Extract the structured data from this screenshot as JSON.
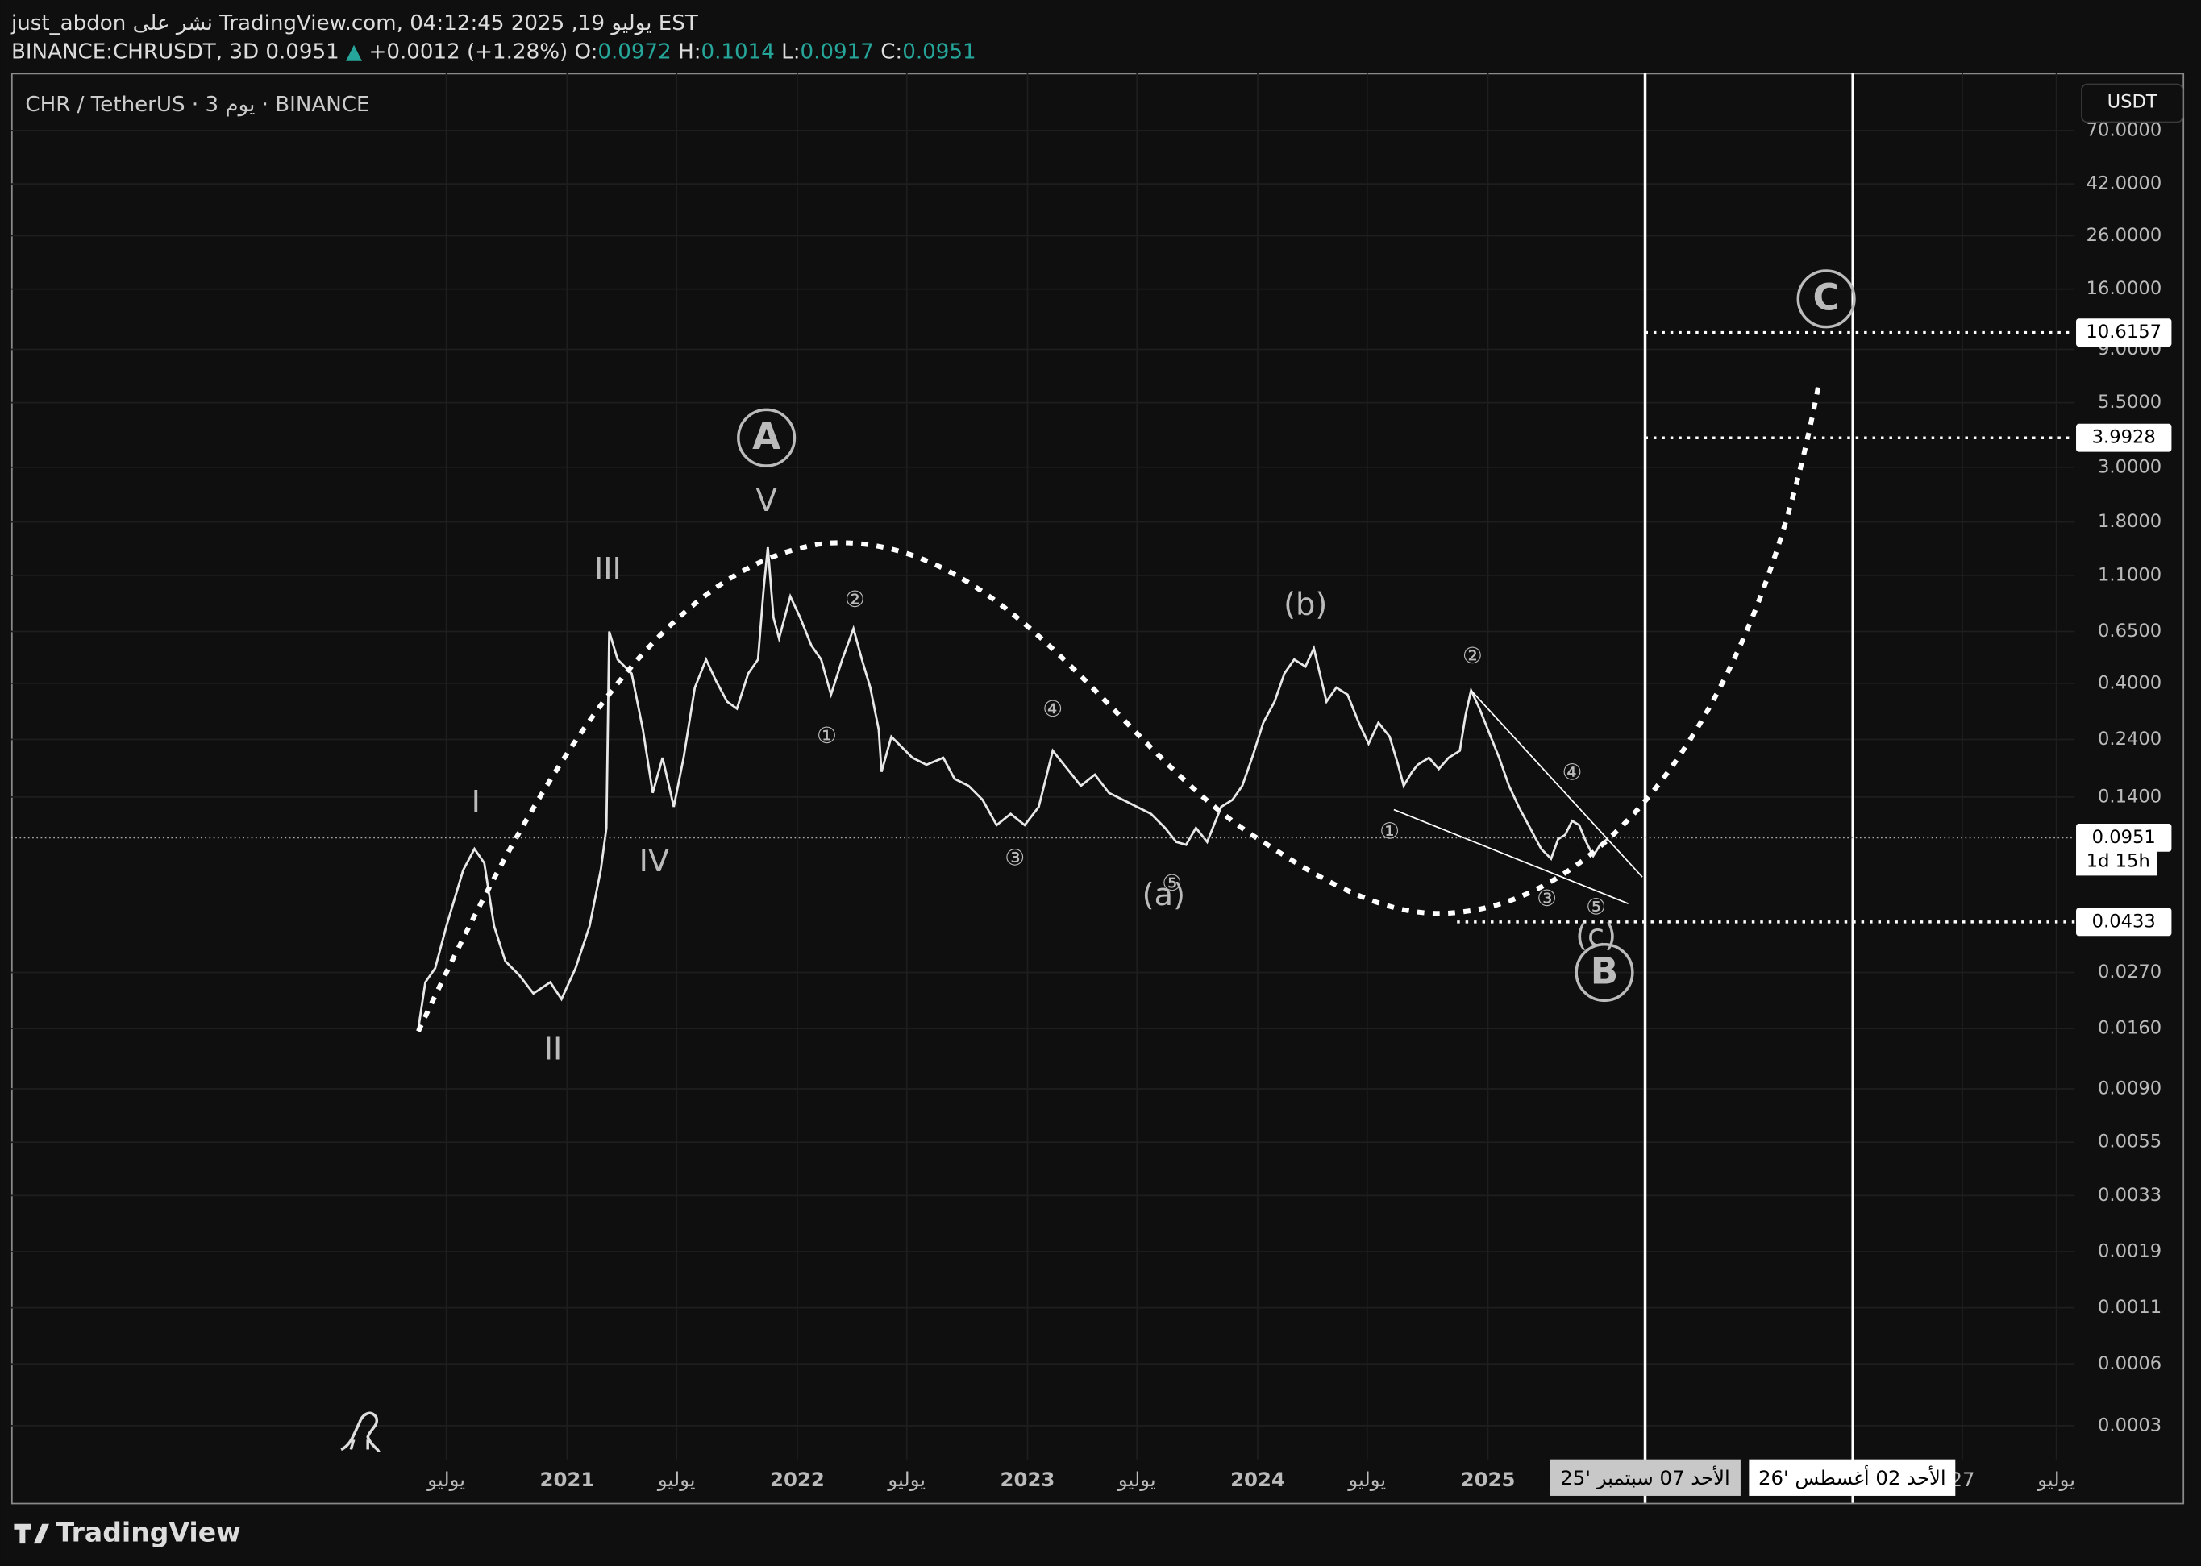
{
  "header": {
    "line1": "just_abdon نشر على TradingView.com, يوليو 19, 2025 04:12:45 EST",
    "symbol": "BINANCE:CHRUSDT, 3D",
    "last": "0.0951",
    "arrow": "▲",
    "change": "+0.0012 (+1.28%)",
    "ohlc": [
      {
        "label": "O:",
        "value": "0.0972"
      },
      {
        "label": "H:",
        "value": "0.1014"
      },
      {
        "label": "L:",
        "value": "0.0917"
      },
      {
        "label": "C:",
        "value": "0.0951"
      }
    ]
  },
  "legend": "CHR / TetherUS · 3 يوم · BINANCE",
  "currency_button": "USDT",
  "price_axis": [
    "70.0000",
    "42.0000",
    "26.0000",
    "16.0000",
    "9.0000",
    "5.5000",
    "3.0000",
    "1.8000",
    "1.1000",
    "0.6500",
    "0.4000",
    "0.2400",
    "0.1400",
    "0.0270",
    "0.0160",
    "0.0090",
    "0.0055",
    "0.0033",
    "0.0019",
    "0.0011",
    "0.0006",
    "0.0003"
  ],
  "price_tags": [
    "10.6157",
    "3.9928",
    "0.0951",
    "0.0433"
  ],
  "countdown": "1d 15h",
  "time_axis": [
    "يوليو",
    "2021",
    "يوليو",
    "2022",
    "يوليو",
    "2023",
    "يوليو",
    "2024",
    "يوليو",
    "2025",
    "27",
    "يوليو"
  ],
  "date_tags": [
    "الأحد 07 سبتمبر '25",
    "الأحد 02 أغسطس '26"
  ],
  "wave_labels": [
    "A",
    "V",
    "III",
    "I",
    "IV",
    "II",
    "(b)",
    "(a)",
    "(c)",
    "B",
    "C"
  ],
  "minor_labels": [
    "②",
    "①",
    "④",
    "③",
    "⑤",
    "②",
    "①",
    "④",
    "③",
    "⑤"
  ],
  "footer": {
    "logo": "TradingView"
  }
}
